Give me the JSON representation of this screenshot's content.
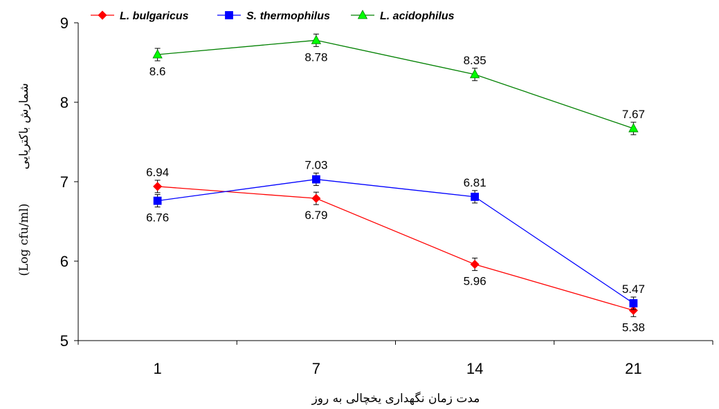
{
  "chart_data": {
    "type": "line",
    "categories": [
      "1",
      "7",
      "14",
      "21"
    ],
    "ylim": [
      5,
      9
    ],
    "yticks": [
      "5",
      "6",
      "7",
      "8",
      "9"
    ],
    "xlabel": "مدت زمان نگهداری یخچالی به روز",
    "ylabel_main": "شمارش باکتریایی",
    "ylabel_unit": "(Log cfu/ml)",
    "legend_position": "top",
    "grid": false,
    "error_bars": true,
    "series": [
      {
        "name": "L. bulgaricus",
        "color": "#ff0000",
        "marker": "diamond",
        "values": [
          6.94,
          6.79,
          5.96,
          5.38
        ],
        "labels": [
          "6.94",
          "6.79",
          "5.96",
          "5.38"
        ],
        "label_pos": [
          "above",
          "below",
          "below",
          "below"
        ]
      },
      {
        "name": "S. thermophilus",
        "color": "#0000ff",
        "marker": "square",
        "values": [
          6.76,
          7.03,
          6.81,
          5.47
        ],
        "labels": [
          "6.76",
          "7.03",
          "6.81",
          "5.47"
        ],
        "label_pos": [
          "below",
          "above",
          "above",
          "above"
        ]
      },
      {
        "name": "L. acidophilus",
        "color": "#008000",
        "marker_fill": "#00ff00",
        "marker": "triangle",
        "values": [
          8.6,
          8.78,
          8.35,
          7.67
        ],
        "labels": [
          "8.6",
          "8.78",
          "8.35",
          "7.67"
        ],
        "label_pos": [
          "below",
          "below",
          "above",
          "above"
        ]
      }
    ]
  }
}
